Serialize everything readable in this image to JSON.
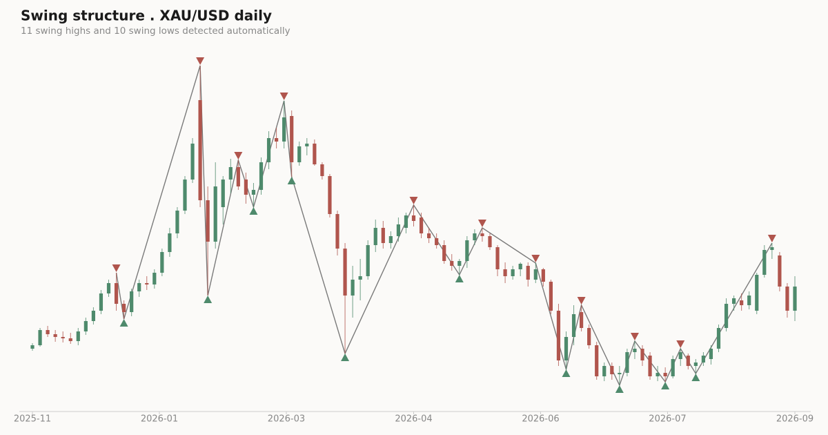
{
  "chart_data": {
    "type": "candlestick",
    "title": "Swing structure  .  XAU/USD daily",
    "subtitle": "11 swing highs and 10 swing lows detected automatically",
    "up_color": "#4e8a6c",
    "down_color": "#b0554d",
    "line_color": "#7a7a7a",
    "ylim": [
      30,
      520
    ],
    "xlim": [
      -1,
      101
    ],
    "xticks": [
      {
        "value": 0,
        "label": "2025-11"
      },
      {
        "value": 16.65,
        "label": "2026-01"
      },
      {
        "value": 33.3,
        "label": "2026-03"
      },
      {
        "value": 50,
        "label": "2026-04"
      },
      {
        "value": 66.65,
        "label": "2026-06"
      },
      {
        "value": 83.3,
        "label": "2026-07"
      },
      {
        "value": 100,
        "label": "2026-09"
      }
    ],
    "ohlc": [
      [
        95,
        103,
        92,
        100
      ],
      [
        100,
        125,
        98,
        122
      ],
      [
        122,
        128,
        112,
        116
      ],
      [
        116,
        122,
        105,
        112
      ],
      [
        112,
        120,
        104,
        110
      ],
      [
        110,
        118,
        102,
        106
      ],
      [
        106,
        125,
        100,
        120
      ],
      [
        120,
        140,
        115,
        135
      ],
      [
        135,
        155,
        130,
        150
      ],
      [
        150,
        180,
        145,
        175
      ],
      [
        175,
        195,
        170,
        190
      ],
      [
        190,
        205,
        150,
        160
      ],
      [
        160,
        165,
        138,
        148
      ],
      [
        148,
        182,
        142,
        178
      ],
      [
        178,
        195,
        170,
        190
      ],
      [
        190,
        200,
        180,
        188
      ],
      [
        188,
        210,
        182,
        205
      ],
      [
        205,
        240,
        200,
        235
      ],
      [
        235,
        270,
        228,
        262
      ],
      [
        262,
        300,
        255,
        295
      ],
      [
        295,
        345,
        290,
        340
      ],
      [
        340,
        400,
        335,
        392
      ],
      [
        455,
        505,
        300,
        310
      ],
      [
        310,
        330,
        172,
        250
      ],
      [
        250,
        365,
        240,
        330
      ],
      [
        300,
        345,
        275,
        340
      ],
      [
        340,
        370,
        320,
        358
      ],
      [
        358,
        368,
        325,
        330
      ],
      [
        340,
        350,
        305,
        318
      ],
      [
        318,
        335,
        300,
        325
      ],
      [
        325,
        372,
        318,
        365
      ],
      [
        365,
        410,
        355,
        400
      ],
      [
        400,
        415,
        385,
        395
      ],
      [
        395,
        454,
        385,
        430
      ],
      [
        432,
        440,
        344,
        365
      ],
      [
        365,
        395,
        360,
        388
      ],
      [
        388,
        400,
        375,
        392
      ],
      [
        392,
        398,
        360,
        362
      ],
      [
        362,
        365,
        340,
        345
      ],
      [
        345,
        348,
        285,
        290
      ],
      [
        290,
        295,
        230,
        240
      ],
      [
        240,
        248,
        88,
        172
      ],
      [
        172,
        215,
        140,
        195
      ],
      [
        195,
        225,
        165,
        200
      ],
      [
        200,
        252,
        195,
        245
      ],
      [
        245,
        282,
        235,
        270
      ],
      [
        270,
        280,
        240,
        248
      ],
      [
        248,
        265,
        240,
        258
      ],
      [
        258,
        285,
        250,
        275
      ],
      [
        270,
        292,
        262,
        288
      ],
      [
        288,
        303,
        272,
        280
      ],
      [
        285,
        292,
        255,
        262
      ],
      [
        262,
        270,
        248,
        255
      ],
      [
        255,
        262,
        240,
        245
      ],
      [
        245,
        252,
        218,
        222
      ],
      [
        222,
        232,
        208,
        215
      ],
      [
        215,
        225,
        202,
        222
      ],
      [
        222,
        258,
        212,
        252
      ],
      [
        252,
        268,
        245,
        262
      ],
      [
        262,
        270,
        250,
        258
      ],
      [
        258,
        262,
        238,
        242
      ],
      [
        242,
        245,
        200,
        210
      ],
      [
        210,
        220,
        190,
        200
      ],
      [
        200,
        215,
        195,
        210
      ],
      [
        210,
        220,
        200,
        218
      ],
      [
        215,
        220,
        185,
        195
      ],
      [
        195,
        219,
        190,
        210
      ],
      [
        210,
        212,
        185,
        192
      ],
      [
        192,
        195,
        145,
        150
      ],
      [
        150,
        160,
        70,
        78
      ],
      [
        78,
        120,
        65,
        112
      ],
      [
        112,
        158,
        100,
        145
      ],
      [
        148,
        158,
        120,
        125
      ],
      [
        125,
        130,
        95,
        100
      ],
      [
        100,
        105,
        50,
        55
      ],
      [
        55,
        75,
        48,
        70
      ],
      [
        70,
        75,
        50,
        58
      ],
      [
        58,
        70,
        42,
        60
      ],
      [
        60,
        95,
        55,
        90
      ],
      [
        90,
        106,
        80,
        95
      ],
      [
        95,
        100,
        70,
        78
      ],
      [
        85,
        90,
        50,
        55
      ],
      [
        55,
        70,
        48,
        60
      ],
      [
        60,
        68,
        47,
        55
      ],
      [
        55,
        85,
        52,
        80
      ],
      [
        80,
        95,
        70,
        90
      ],
      [
        85,
        88,
        65,
        70
      ],
      [
        70,
        80,
        59,
        75
      ],
      [
        75,
        90,
        70,
        85
      ],
      [
        80,
        100,
        72,
        95
      ],
      [
        95,
        130,
        90,
        125
      ],
      [
        125,
        168,
        120,
        160
      ],
      [
        160,
        172,
        150,
        168
      ],
      [
        165,
        175,
        150,
        158
      ],
      [
        158,
        178,
        152,
        172
      ],
      [
        150,
        205,
        145,
        202
      ],
      [
        202,
        245,
        198,
        238
      ],
      [
        238,
        248,
        225,
        242
      ],
      [
        230,
        235,
        178,
        185
      ],
      [
        185,
        190,
        140,
        150
      ],
      [
        150,
        200,
        135,
        185
      ]
    ],
    "swings": [
      {
        "x": 11,
        "kind": "high",
        "value": 205
      },
      {
        "x": 12,
        "kind": "low",
        "value": 138
      },
      {
        "x": 22,
        "kind": "high",
        "value": 505
      },
      {
        "x": 23,
        "kind": "low",
        "value": 172
      },
      {
        "x": 27,
        "kind": "high",
        "value": 368
      },
      {
        "x": 29,
        "kind": "low",
        "value": 300
      },
      {
        "x": 33,
        "kind": "high",
        "value": 454
      },
      {
        "x": 34,
        "kind": "low",
        "value": 344
      },
      {
        "x": 41,
        "kind": "low",
        "value": 88
      },
      {
        "x": 50,
        "kind": "high",
        "value": 303
      },
      {
        "x": 56,
        "kind": "low",
        "value": 202
      },
      {
        "x": 59,
        "kind": "high",
        "value": 270
      },
      {
        "x": 66,
        "kind": "high",
        "value": 219
      },
      {
        "x": 70,
        "kind": "low",
        "value": 65
      },
      {
        "x": 72,
        "kind": "high",
        "value": 158
      },
      {
        "x": 77,
        "kind": "low",
        "value": 42
      },
      {
        "x": 79,
        "kind": "high",
        "value": 106
      },
      {
        "x": 83,
        "kind": "low",
        "value": 47
      },
      {
        "x": 85,
        "kind": "high",
        "value": 95
      },
      {
        "x": 87,
        "kind": "low",
        "value": 59
      },
      {
        "x": 97,
        "kind": "high",
        "value": 248
      }
    ]
  }
}
